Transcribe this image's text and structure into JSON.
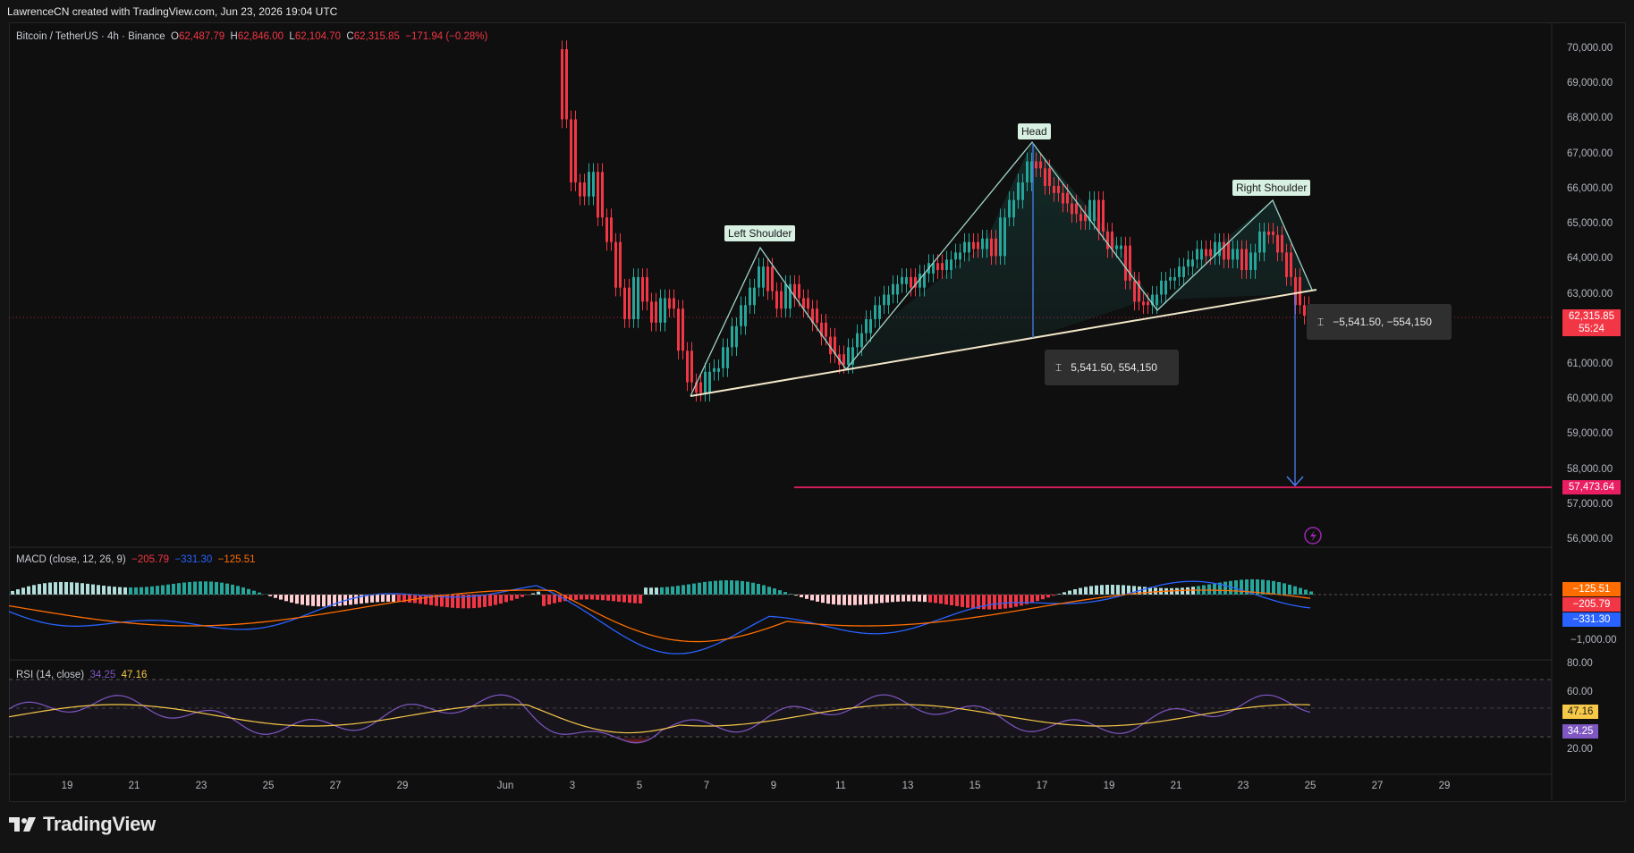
{
  "header": {
    "watermark": "LawrenceCN created with TradingView.com, Jun 23, 2026 19:04 UTC"
  },
  "symbol_legend": {
    "symbol": "Bitcoin / TetherUS · 4h · Binance",
    "o_label": "O",
    "o_value": "62,487.79",
    "h_label": "H",
    "h_value": "62,846.00",
    "l_label": "L",
    "l_value": "62,104.70",
    "c_label": "C",
    "c_value": "62,315.85",
    "change": "−171.94 (−0.28%)"
  },
  "macd_legend": {
    "label": "MACD (close, 12, 26, 9)",
    "hist": "−205.79",
    "macd": "−331.30",
    "signal": "−125.51"
  },
  "rsi_legend": {
    "label": "RSI (14, close)",
    "rsi": "34.25",
    "ma": "47.16"
  },
  "price_axis": {
    "ticks": [
      "70,000.00",
      "69,000.00",
      "68,000.00",
      "67,000.00",
      "66,000.00",
      "65,000.00",
      "64,000.00",
      "63,000.00",
      "61,000.00",
      "60,000.00",
      "59,000.00",
      "58,000.00",
      "57,000.00",
      "56,000.00"
    ],
    "last_price": "62,315.85",
    "countdown": "55:24",
    "target_price": "57,473.64"
  },
  "macd_axis": {
    "ticks": [
      "−1,000.00"
    ],
    "badges": [
      "−125.51",
      "−205.79",
      "−331.30"
    ]
  },
  "rsi_axis": {
    "ticks": [
      "80.00",
      "60.00",
      "20.00"
    ],
    "badges": [
      "47.16",
      "34.25"
    ]
  },
  "time_axis": {
    "ticks": [
      "19",
      "21",
      "23",
      "25",
      "27",
      "29",
      "Jun",
      "3",
      "5",
      "7",
      "9",
      "11",
      "13",
      "15",
      "17",
      "19",
      "21",
      "23",
      "25",
      "27",
      "29"
    ]
  },
  "annotations": {
    "left_shoulder": "Left Shoulder",
    "head": "Head",
    "right_shoulder": "Right Shoulder",
    "measure_up": "5,541.50, 554,150",
    "measure_down": "−5,541.50, −554,150"
  },
  "brand": {
    "name": "TradingView"
  },
  "colors": {
    "up": "#26a69a",
    "down": "#f23645",
    "macd_line": "#2962ff",
    "signal_line": "#ff6d00",
    "rsi_line": "#7e57c2",
    "rsi_ma": "#f7c948",
    "target_line": "#e91e63"
  }
}
